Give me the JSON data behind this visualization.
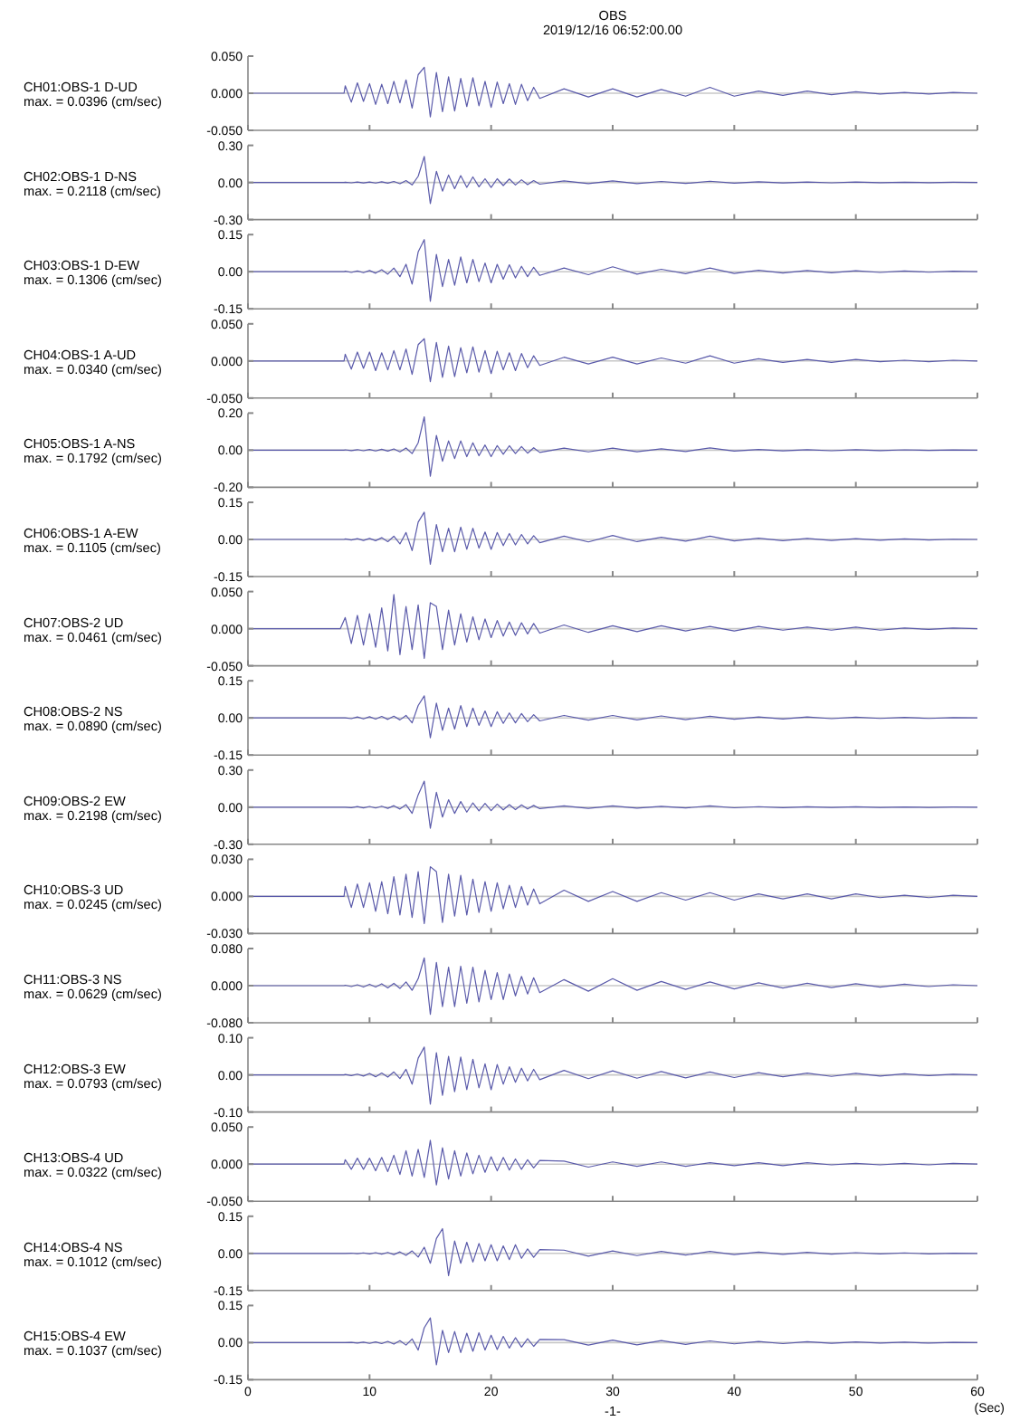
{
  "chart_data": [
    {
      "type": "line",
      "ylabel": "CH01:OBS-1 D-UD",
      "subtitle": "max. = 0.0396 (cm/sec)",
      "annotations": [
        "OBS",
        "2019/12/16 06:52:00.00"
      ],
      "xlim": [
        0,
        60
      ],
      "xticks": [
        0,
        10,
        20,
        30,
        40,
        50,
        60
      ],
      "ylim": [
        -0.05,
        0.05
      ],
      "yticks": [
        {
          "value": -0.05,
          "label": "-0.050"
        },
        {
          "value": 0,
          "label": "0.000"
        },
        {
          "value": 0.05,
          "label": "0.050"
        }
      ],
      "tick_labels": "y",
      "ref_lines": [
        {
          "axis": "y",
          "value": 0,
          "color": "#c8c8c8"
        }
      ],
      "x": [
        0,
        7.9,
        8,
        8.5,
        9,
        9.5,
        10,
        10.5,
        11,
        11.5,
        12,
        12.5,
        13,
        13.5,
        14,
        14.5,
        15,
        15.5,
        16,
        16.5,
        17,
        17.5,
        18,
        18.5,
        19,
        19.5,
        20,
        20.5,
        21,
        21.5,
        22,
        22.5,
        23,
        23.5,
        24,
        26,
        28,
        30,
        32,
        34,
        36,
        38,
        40,
        42,
        44,
        46,
        48,
        50,
        52,
        54,
        56,
        58,
        60
      ],
      "series": [
        {
          "color": "#5a5aaa",
          "values": [
            0,
            0,
            0.01,
            -0.012,
            0.014,
            -0.011,
            0.013,
            -0.015,
            0.012,
            -0.014,
            0.016,
            -0.013,
            0.018,
            -0.02,
            0.025,
            0.035,
            -0.032,
            0.028,
            -0.025,
            0.022,
            -0.024,
            0.02,
            -0.018,
            0.021,
            -0.017,
            0.016,
            -0.019,
            0.015,
            -0.014,
            0.013,
            -0.015,
            0.012,
            -0.01,
            0.008,
            -0.007,
            0.006,
            -0.005,
            0.006,
            -0.005,
            0.005,
            -0.004,
            0.008,
            -0.004,
            0.003,
            -0.003,
            0.003,
            -0.002,
            0.002,
            -0.001,
            0.001,
            -0.001,
            0.001,
            0
          ]
        }
      ]
    },
    {
      "type": "line",
      "ylabel": "CH02:OBS-1 D-NS",
      "subtitle": "max. = 0.2118 (cm/sec)",
      "xlim": [
        0,
        60
      ],
      "xticks": [
        0,
        10,
        20,
        30,
        40,
        50,
        60
      ],
      "ylim": [
        -0.3,
        0.3
      ],
      "yticks": [
        {
          "value": -0.3,
          "label": "-0.30"
        },
        {
          "value": 0,
          "label": "0.00"
        },
        {
          "value": 0.3,
          "label": "0.30"
        }
      ],
      "tick_labels": "y",
      "ref_lines": [
        {
          "axis": "y",
          "value": 0,
          "color": "#c8c8c8"
        }
      ],
      "x": [
        0,
        7.9,
        8,
        8.5,
        9,
        9.5,
        10,
        10.5,
        11,
        11.5,
        12,
        12.5,
        13,
        13.5,
        14,
        14.5,
        15,
        15.5,
        16,
        16.5,
        17,
        17.5,
        18,
        18.5,
        19,
        19.5,
        20,
        20.5,
        21,
        21.5,
        22,
        22.5,
        23,
        23.5,
        24,
        26,
        28,
        30,
        32,
        34,
        36,
        38,
        40,
        42,
        44,
        46,
        48,
        50,
        52,
        54,
        56,
        58,
        60
      ],
      "series": [
        {
          "color": "#5a5aaa",
          "values": [
            0,
            0,
            0.002,
            -0.003,
            0.003,
            -0.004,
            0.004,
            -0.005,
            0.005,
            -0.006,
            0.008,
            -0.01,
            0.015,
            -0.02,
            0.05,
            0.21,
            -0.17,
            0.09,
            -0.07,
            0.06,
            -0.05,
            0.055,
            -0.04,
            0.045,
            -0.035,
            0.03,
            -0.04,
            0.03,
            -0.025,
            0.028,
            -0.02,
            0.022,
            -0.018,
            0.015,
            -0.014,
            0.012,
            -0.01,
            0.012,
            -0.009,
            0.008,
            -0.008,
            0.01,
            -0.006,
            0.005,
            -0.004,
            0.004,
            -0.003,
            0.003,
            -0.002,
            0.002,
            -0.002,
            0.001,
            0
          ]
        }
      ]
    },
    {
      "type": "line",
      "ylabel": "CH03:OBS-1 D-EW",
      "subtitle": "max. = 0.1306 (cm/sec)",
      "xlim": [
        0,
        60
      ],
      "xticks": [
        0,
        10,
        20,
        30,
        40,
        50,
        60
      ],
      "ylim": [
        -0.15,
        0.15
      ],
      "yticks": [
        {
          "value": -0.15,
          "label": "-0.15"
        },
        {
          "value": 0,
          "label": "0.00"
        },
        {
          "value": 0.15,
          "label": "0.15"
        }
      ],
      "tick_labels": "y",
      "ref_lines": [
        {
          "axis": "y",
          "value": 0,
          "color": "#c8c8c8"
        }
      ],
      "x": [
        0,
        7.9,
        8,
        8.5,
        9,
        9.5,
        10,
        10.5,
        11,
        11.5,
        12,
        12.5,
        13,
        13.5,
        14,
        14.5,
        15,
        15.5,
        16,
        16.5,
        17,
        17.5,
        18,
        18.5,
        19,
        19.5,
        20,
        20.5,
        21,
        21.5,
        22,
        22.5,
        23,
        23.5,
        24,
        26,
        28,
        30,
        32,
        34,
        36,
        38,
        40,
        42,
        44,
        46,
        48,
        50,
        52,
        54,
        56,
        58,
        60
      ],
      "series": [
        {
          "color": "#5a5aaa",
          "values": [
            0,
            0,
            0.002,
            -0.003,
            0.003,
            -0.004,
            0.005,
            -0.006,
            0.008,
            -0.01,
            0.015,
            -0.02,
            0.03,
            -0.05,
            0.08,
            0.13,
            -0.12,
            0.07,
            -0.06,
            0.05,
            -0.055,
            0.06,
            -0.045,
            0.05,
            -0.04,
            0.035,
            -0.045,
            0.03,
            -0.03,
            0.028,
            -0.025,
            0.022,
            -0.02,
            0.018,
            -0.015,
            0.015,
            -0.012,
            0.02,
            -0.01,
            0.01,
            -0.008,
            0.015,
            -0.007,
            0.006,
            -0.005,
            0.005,
            -0.004,
            0.004,
            -0.003,
            0.003,
            -0.002,
            0.002,
            0
          ]
        }
      ]
    },
    {
      "type": "line",
      "ylabel": "CH04:OBS-1 A-UD",
      "subtitle": "max. = 0.0340 (cm/sec)",
      "xlim": [
        0,
        60
      ],
      "xticks": [
        0,
        10,
        20,
        30,
        40,
        50,
        60
      ],
      "ylim": [
        -0.05,
        0.05
      ],
      "yticks": [
        {
          "value": -0.05,
          "label": "-0.050"
        },
        {
          "value": 0,
          "label": "0.000"
        },
        {
          "value": 0.05,
          "label": "0.050"
        }
      ],
      "tick_labels": "y",
      "ref_lines": [
        {
          "axis": "y",
          "value": 0,
          "color": "#c8c8c8"
        }
      ],
      "x": [
        0,
        7.9,
        8,
        8.5,
        9,
        9.5,
        10,
        10.5,
        11,
        11.5,
        12,
        12.5,
        13,
        13.5,
        14,
        14.5,
        15,
        15.5,
        16,
        16.5,
        17,
        17.5,
        18,
        18.5,
        19,
        19.5,
        20,
        20.5,
        21,
        21.5,
        22,
        22.5,
        23,
        23.5,
        24,
        26,
        28,
        30,
        32,
        34,
        36,
        38,
        40,
        42,
        44,
        46,
        48,
        50,
        52,
        54,
        56,
        58,
        60
      ],
      "series": [
        {
          "color": "#5a5aaa",
          "values": [
            0,
            0,
            0.009,
            -0.011,
            0.012,
            -0.01,
            0.012,
            -0.013,
            0.011,
            -0.012,
            0.014,
            -0.012,
            0.016,
            -0.018,
            0.022,
            0.03,
            -0.028,
            0.025,
            -0.022,
            0.02,
            -0.021,
            0.018,
            -0.016,
            0.019,
            -0.015,
            0.014,
            -0.017,
            0.013,
            -0.012,
            0.011,
            -0.013,
            0.01,
            -0.009,
            0.007,
            -0.006,
            0.005,
            -0.004,
            0.005,
            -0.004,
            0.004,
            -0.003,
            0.007,
            -0.003,
            0.003,
            -0.002,
            0.002,
            -0.002,
            0.002,
            -0.001,
            0.001,
            -0.001,
            0.001,
            0
          ]
        }
      ]
    },
    {
      "type": "line",
      "ylabel": "CH05:OBS-1 A-NS",
      "subtitle": "max. = 0.1792 (cm/sec)",
      "xlim": [
        0,
        60
      ],
      "xticks": [
        0,
        10,
        20,
        30,
        40,
        50,
        60
      ],
      "ylim": [
        -0.2,
        0.2
      ],
      "yticks": [
        {
          "value": -0.2,
          "label": "-0.20"
        },
        {
          "value": 0,
          "label": "0.00"
        },
        {
          "value": 0.2,
          "label": "0.20"
        }
      ],
      "tick_labels": "y",
      "ref_lines": [
        {
          "axis": "y",
          "value": 0,
          "color": "#c8c8c8"
        }
      ],
      "x": [
        0,
        7.9,
        8,
        8.5,
        9,
        9.5,
        10,
        10.5,
        11,
        11.5,
        12,
        12.5,
        13,
        13.5,
        14,
        14.5,
        15,
        15.5,
        16,
        16.5,
        17,
        17.5,
        18,
        18.5,
        19,
        19.5,
        20,
        20.5,
        21,
        21.5,
        22,
        22.5,
        23,
        23.5,
        24,
        26,
        28,
        30,
        32,
        34,
        36,
        38,
        40,
        42,
        44,
        46,
        48,
        50,
        52,
        54,
        56,
        58,
        60
      ],
      "series": [
        {
          "color": "#5a5aaa",
          "values": [
            0,
            0,
            0.002,
            -0.002,
            0.003,
            -0.003,
            0.004,
            -0.004,
            0.005,
            -0.005,
            0.007,
            -0.009,
            0.012,
            -0.018,
            0.04,
            0.18,
            -0.14,
            0.08,
            -0.06,
            0.05,
            -0.045,
            0.05,
            -0.035,
            0.04,
            -0.03,
            0.028,
            -0.035,
            0.025,
            -0.022,
            0.024,
            -0.018,
            0.02,
            -0.016,
            0.013,
            -0.012,
            0.011,
            -0.009,
            0.011,
            -0.008,
            0.007,
            -0.007,
            0.012,
            -0.005,
            0.004,
            -0.004,
            0.003,
            -0.003,
            0.003,
            -0.002,
            0.002,
            -0.001,
            0.001,
            0
          ]
        }
      ]
    },
    {
      "type": "line",
      "ylabel": "CH06:OBS-1 A-EW",
      "subtitle": "max. = 0.1105 (cm/sec)",
      "xlim": [
        0,
        60
      ],
      "xticks": [
        0,
        10,
        20,
        30,
        40,
        50,
        60
      ],
      "ylim": [
        -0.15,
        0.15
      ],
      "yticks": [
        {
          "value": -0.15,
          "label": "-0.15"
        },
        {
          "value": 0,
          "label": "0.00"
        },
        {
          "value": 0.15,
          "label": "0.15"
        }
      ],
      "tick_labels": "y",
      "ref_lines": [
        {
          "axis": "y",
          "value": 0,
          "color": "#c8c8c8"
        }
      ],
      "x": [
        0,
        7.9,
        8,
        8.5,
        9,
        9.5,
        10,
        10.5,
        11,
        11.5,
        12,
        12.5,
        13,
        13.5,
        14,
        14.5,
        15,
        15.5,
        16,
        16.5,
        17,
        17.5,
        18,
        18.5,
        19,
        19.5,
        20,
        20.5,
        21,
        21.5,
        22,
        22.5,
        23,
        23.5,
        24,
        26,
        28,
        30,
        32,
        34,
        36,
        38,
        40,
        42,
        44,
        46,
        48,
        50,
        52,
        54,
        56,
        58,
        60
      ],
      "series": [
        {
          "color": "#5a5aaa",
          "values": [
            0,
            0,
            0.002,
            -0.002,
            0.003,
            -0.004,
            0.004,
            -0.005,
            0.007,
            -0.009,
            0.013,
            -0.018,
            0.028,
            -0.045,
            0.07,
            0.11,
            -0.1,
            0.06,
            -0.05,
            0.045,
            -0.05,
            0.05,
            -0.04,
            0.045,
            -0.035,
            0.03,
            -0.04,
            0.028,
            -0.025,
            0.024,
            -0.022,
            0.02,
            -0.018,
            0.015,
            -0.013,
            0.013,
            -0.01,
            0.016,
            -0.009,
            0.009,
            -0.007,
            0.013,
            -0.006,
            0.005,
            -0.005,
            0.004,
            -0.004,
            0.003,
            -0.003,
            0.002,
            -0.002,
            0.001,
            0
          ]
        }
      ]
    },
    {
      "type": "line",
      "ylabel": "CH07:OBS-2 UD",
      "subtitle": "max. = 0.0461 (cm/sec)",
      "xlim": [
        0,
        60
      ],
      "xticks": [
        0,
        10,
        20,
        30,
        40,
        50,
        60
      ],
      "ylim": [
        -0.05,
        0.05
      ],
      "yticks": [
        {
          "value": -0.05,
          "label": "-0.050"
        },
        {
          "value": 0,
          "label": "0.000"
        },
        {
          "value": 0.05,
          "label": "0.050"
        }
      ],
      "tick_labels": "y",
      "ref_lines": [
        {
          "axis": "y",
          "value": 0,
          "color": "#c8c8c8"
        }
      ],
      "x": [
        0,
        7.6,
        8,
        8.5,
        9,
        9.5,
        10,
        10.5,
        11,
        11.5,
        12,
        12.5,
        13,
        13.5,
        14,
        14.5,
        15,
        15.5,
        16,
        16.5,
        17,
        17.5,
        18,
        18.5,
        19,
        19.5,
        20,
        20.5,
        21,
        21.5,
        22,
        22.5,
        23,
        23.5,
        24,
        26,
        28,
        30,
        32,
        34,
        36,
        38,
        40,
        42,
        44,
        46,
        48,
        50,
        52,
        54,
        56,
        58,
        60
      ],
      "series": [
        {
          "color": "#5a5aaa",
          "values": [
            0,
            0,
            0.015,
            -0.02,
            0.018,
            -0.022,
            0.02,
            -0.025,
            0.028,
            -0.03,
            0.046,
            -0.035,
            0.03,
            -0.028,
            0.032,
            -0.04,
            0.035,
            0.03,
            -0.028,
            0.025,
            -0.022,
            0.02,
            -0.018,
            0.016,
            -0.015,
            0.013,
            -0.012,
            0.011,
            -0.01,
            0.009,
            -0.009,
            0.008,
            -0.007,
            0.007,
            -0.006,
            0.005,
            -0.005,
            0.004,
            -0.004,
            0.004,
            -0.003,
            0.003,
            -0.003,
            0.003,
            -0.002,
            0.002,
            -0.002,
            0.002,
            -0.002,
            0.001,
            -0.001,
            0.001,
            0
          ]
        }
      ]
    },
    {
      "type": "line",
      "ylabel": "CH08:OBS-2 NS",
      "subtitle": "max. = 0.0890 (cm/sec)",
      "xlim": [
        0,
        60
      ],
      "xticks": [
        0,
        10,
        20,
        30,
        40,
        50,
        60
      ],
      "ylim": [
        -0.15,
        0.15
      ],
      "yticks": [
        {
          "value": -0.15,
          "label": "-0.15"
        },
        {
          "value": 0,
          "label": "0.00"
        },
        {
          "value": 0.15,
          "label": "0.15"
        }
      ],
      "tick_labels": "y",
      "ref_lines": [
        {
          "axis": "y",
          "value": 0,
          "color": "#c8c8c8"
        }
      ],
      "x": [
        0,
        7.9,
        8,
        8.5,
        9,
        9.5,
        10,
        10.5,
        11,
        11.5,
        12,
        12.5,
        13,
        13.5,
        14,
        14.5,
        15,
        15.5,
        16,
        16.5,
        17,
        17.5,
        18,
        18.5,
        19,
        19.5,
        20,
        20.5,
        21,
        21.5,
        22,
        22.5,
        23,
        23.5,
        24,
        26,
        28,
        30,
        32,
        34,
        36,
        38,
        40,
        42,
        44,
        46,
        48,
        50,
        52,
        54,
        56,
        58,
        60
      ],
      "series": [
        {
          "color": "#5a5aaa",
          "values": [
            0,
            0,
            0,
            -0.003,
            0.004,
            -0.004,
            0.005,
            -0.005,
            0.006,
            -0.006,
            0.007,
            -0.008,
            0.01,
            -0.02,
            0.05,
            0.089,
            -0.08,
            0.06,
            -0.05,
            0.04,
            -0.045,
            0.05,
            -0.035,
            0.04,
            -0.03,
            0.028,
            -0.035,
            0.025,
            -0.022,
            0.02,
            -0.02,
            0.018,
            -0.015,
            0.013,
            -0.012,
            0.01,
            -0.009,
            0.01,
            -0.008,
            0.008,
            -0.007,
            0.007,
            -0.005,
            0.004,
            -0.004,
            0.004,
            -0.003,
            0.003,
            -0.002,
            0.002,
            -0.002,
            0.001,
            0
          ]
        }
      ]
    },
    {
      "type": "line",
      "ylabel": "CH09:OBS-2 EW",
      "subtitle": "max. = 0.2198 (cm/sec)",
      "xlim": [
        0,
        60
      ],
      "xticks": [
        0,
        10,
        20,
        30,
        40,
        50,
        60
      ],
      "ylim": [
        -0.3,
        0.3
      ],
      "yticks": [
        {
          "value": -0.3,
          "label": "-0.30"
        },
        {
          "value": 0,
          "label": "0.00"
        },
        {
          "value": 0.3,
          "label": "0.30"
        }
      ],
      "tick_labels": "y",
      "ref_lines": [
        {
          "axis": "y",
          "value": 0,
          "color": "#c8c8c8"
        }
      ],
      "x": [
        0,
        7.9,
        8,
        8.5,
        9,
        9.5,
        10,
        10.5,
        11,
        11.5,
        12,
        12.5,
        13,
        13.5,
        14,
        14.5,
        15,
        15.5,
        16,
        16.5,
        17,
        17.5,
        18,
        18.5,
        19,
        19.5,
        20,
        20.5,
        21,
        21.5,
        22,
        22.5,
        23,
        23.5,
        24,
        26,
        28,
        30,
        32,
        34,
        36,
        38,
        40,
        42,
        44,
        46,
        48,
        50,
        52,
        54,
        56,
        58,
        60
      ],
      "series": [
        {
          "color": "#5a5aaa",
          "values": [
            0,
            0,
            0,
            -0.004,
            0.005,
            -0.006,
            0.006,
            -0.007,
            0.008,
            -0.01,
            0.012,
            -0.015,
            0.02,
            -0.05,
            0.1,
            0.21,
            -0.17,
            0.12,
            -0.08,
            0.06,
            -0.05,
            0.045,
            -0.04,
            0.035,
            -0.03,
            0.03,
            -0.028,
            0.025,
            -0.022,
            0.02,
            -0.02,
            0.018,
            -0.015,
            0.014,
            -0.012,
            0.01,
            -0.009,
            0.01,
            -0.008,
            0.007,
            -0.006,
            0.01,
            -0.005,
            0.004,
            -0.004,
            0.003,
            -0.003,
            0.003,
            -0.002,
            0.002,
            -0.002,
            0.001,
            0
          ]
        }
      ]
    },
    {
      "type": "line",
      "ylabel": "CH10:OBS-3 UD",
      "subtitle": "max. = 0.0245 (cm/sec)",
      "xlim": [
        0,
        60
      ],
      "xticks": [
        0,
        10,
        20,
        30,
        40,
        50,
        60
      ],
      "ylim": [
        -0.03,
        0.03
      ],
      "yticks": [
        {
          "value": -0.03,
          "label": "-0.030"
        },
        {
          "value": 0,
          "label": "0.000"
        },
        {
          "value": 0.03,
          "label": "0.030"
        }
      ],
      "tick_labels": "y",
      "ref_lines": [
        {
          "axis": "y",
          "value": 0,
          "color": "#c8c8c8"
        }
      ],
      "x": [
        0,
        7.9,
        8,
        8.5,
        9,
        9.5,
        10,
        10.5,
        11,
        11.5,
        12,
        12.5,
        13,
        13.5,
        14,
        14.5,
        15,
        15.5,
        16,
        16.5,
        17,
        17.5,
        18,
        18.5,
        19,
        19.5,
        20,
        20.5,
        21,
        21.5,
        22,
        22.5,
        23,
        23.5,
        24,
        26,
        28,
        30,
        32,
        34,
        36,
        38,
        40,
        42,
        44,
        46,
        48,
        50,
        52,
        54,
        56,
        58,
        60
      ],
      "series": [
        {
          "color": "#5a5aaa",
          "values": [
            0,
            0,
            0.008,
            -0.009,
            0.01,
            -0.009,
            0.011,
            -0.012,
            0.012,
            -0.014,
            0.016,
            -0.015,
            0.018,
            -0.017,
            0.02,
            -0.022,
            0.024,
            0.02,
            -0.021,
            0.018,
            -0.016,
            0.017,
            -0.015,
            0.014,
            -0.013,
            0.012,
            -0.012,
            0.011,
            -0.01,
            0.009,
            -0.009,
            0.008,
            -0.007,
            0.006,
            -0.006,
            0.005,
            -0.004,
            0.004,
            -0.004,
            0.003,
            -0.003,
            0.003,
            -0.003,
            0.002,
            -0.002,
            0.002,
            -0.002,
            0.002,
            -0.001,
            0.001,
            -0.001,
            0.001,
            0
          ]
        }
      ]
    },
    {
      "type": "line",
      "ylabel": "CH11:OBS-3 NS",
      "subtitle": "max. = 0.0629 (cm/sec)",
      "xlim": [
        0,
        60
      ],
      "xticks": [
        0,
        10,
        20,
        30,
        40,
        50,
        60
      ],
      "ylim": [
        -0.08,
        0.08
      ],
      "yticks": [
        {
          "value": -0.08,
          "label": "-0.080"
        },
        {
          "value": 0,
          "label": "0.000"
        },
        {
          "value": 0.08,
          "label": "0.080"
        }
      ],
      "tick_labels": "y",
      "ref_lines": [
        {
          "axis": "y",
          "value": 0,
          "color": "#c8c8c8"
        }
      ],
      "x": [
        0,
        7.9,
        8,
        8.5,
        9,
        9.5,
        10,
        10.5,
        11,
        11.5,
        12,
        12.5,
        13,
        13.5,
        14,
        14.5,
        15,
        15.5,
        16,
        16.5,
        17,
        17.5,
        18,
        18.5,
        19,
        19.5,
        20,
        20.5,
        21,
        21.5,
        22,
        22.5,
        23,
        23.5,
        24,
        26,
        28,
        30,
        32,
        34,
        36,
        38,
        40,
        42,
        44,
        46,
        48,
        50,
        52,
        54,
        56,
        58,
        60
      ],
      "series": [
        {
          "color": "#5a5aaa",
          "values": [
            0,
            0,
            0.001,
            -0.002,
            0.002,
            -0.003,
            0.003,
            -0.003,
            0.004,
            -0.005,
            0.005,
            -0.006,
            0.008,
            -0.01,
            0.015,
            0.06,
            -0.062,
            0.05,
            -0.045,
            0.04,
            -0.045,
            0.042,
            -0.038,
            0.04,
            -0.035,
            0.033,
            -0.03,
            0.028,
            -0.03,
            0.025,
            -0.022,
            0.02,
            -0.018,
            0.017,
            -0.015,
            0.013,
            -0.012,
            0.015,
            -0.01,
            0.009,
            -0.008,
            0.008,
            -0.007,
            0.006,
            -0.005,
            0.005,
            -0.004,
            0.004,
            -0.003,
            0.003,
            -0.002,
            0.002,
            0
          ]
        }
      ]
    },
    {
      "type": "line",
      "ylabel": "CH12:OBS-3 EW",
      "subtitle": "max. = 0.0793 (cm/sec)",
      "xlim": [
        0,
        60
      ],
      "xticks": [
        0,
        10,
        20,
        30,
        40,
        50,
        60
      ],
      "ylim": [
        -0.1,
        0.1
      ],
      "yticks": [
        {
          "value": -0.1,
          "label": "-0.10"
        },
        {
          "value": 0,
          "label": "0.00"
        },
        {
          "value": 0.1,
          "label": "0.10"
        }
      ],
      "tick_labels": "y",
      "ref_lines": [
        {
          "axis": "y",
          "value": 0,
          "color": "#c8c8c8"
        }
      ],
      "x": [
        0,
        7.9,
        8,
        8.5,
        9,
        9.5,
        10,
        10.5,
        11,
        11.5,
        12,
        12.5,
        13,
        13.5,
        14,
        14.5,
        15,
        15.5,
        16,
        16.5,
        17,
        17.5,
        18,
        18.5,
        19,
        19.5,
        20,
        20.5,
        21,
        21.5,
        22,
        22.5,
        23,
        23.5,
        24,
        26,
        28,
        30,
        32,
        34,
        36,
        38,
        40,
        42,
        44,
        46,
        48,
        50,
        52,
        54,
        56,
        58,
        60
      ],
      "series": [
        {
          "color": "#5a5aaa",
          "values": [
            0,
            0,
            0.001,
            -0.002,
            0.002,
            -0.003,
            0.004,
            -0.005,
            0.005,
            -0.006,
            0.008,
            -0.01,
            0.015,
            -0.025,
            0.045,
            0.075,
            -0.079,
            0.06,
            -0.055,
            0.05,
            -0.045,
            0.048,
            -0.04,
            0.042,
            -0.035,
            0.03,
            -0.04,
            0.028,
            -0.025,
            0.022,
            -0.02,
            0.018,
            -0.016,
            0.015,
            -0.013,
            0.012,
            -0.01,
            0.011,
            -0.009,
            0.009,
            -0.008,
            0.008,
            -0.007,
            0.006,
            -0.005,
            0.005,
            -0.004,
            0.004,
            -0.003,
            0.003,
            -0.002,
            0.002,
            0
          ]
        }
      ]
    },
    {
      "type": "line",
      "ylabel": "CH13:OBS-4 UD",
      "subtitle": "max. = 0.0322 (cm/sec)",
      "xlim": [
        0,
        60
      ],
      "xticks": [
        0,
        10,
        20,
        30,
        40,
        50,
        60
      ],
      "ylim": [
        -0.05,
        0.05
      ],
      "yticks": [
        {
          "value": -0.05,
          "label": "-0.050"
        },
        {
          "value": 0,
          "label": "0.000"
        },
        {
          "value": 0.05,
          "label": "0.050"
        }
      ],
      "tick_labels": "y",
      "ref_lines": [
        {
          "axis": "y",
          "value": 0,
          "color": "#c8c8c8"
        }
      ],
      "x": [
        0,
        7.9,
        8,
        8.5,
        9,
        9.5,
        10,
        10.5,
        11,
        11.5,
        12,
        12.5,
        13,
        13.5,
        14,
        14.5,
        15,
        15.5,
        16,
        16.5,
        17,
        17.5,
        18,
        18.5,
        19,
        19.5,
        20,
        20.5,
        21,
        21.5,
        22,
        22.5,
        23,
        23.5,
        24,
        26,
        28,
        30,
        32,
        34,
        36,
        38,
        40,
        42,
        44,
        46,
        48,
        50,
        52,
        54,
        56,
        58,
        60
      ],
      "series": [
        {
          "color": "#5a5aaa",
          "values": [
            0,
            0,
            0.006,
            -0.007,
            0.008,
            -0.007,
            0.008,
            -0.009,
            0.009,
            -0.01,
            0.012,
            -0.014,
            0.018,
            -0.016,
            0.02,
            -0.018,
            0.032,
            -0.028,
            0.022,
            -0.02,
            0.018,
            -0.016,
            0.015,
            -0.013,
            0.012,
            -0.011,
            0.01,
            -0.009,
            0.009,
            -0.008,
            0.007,
            -0.007,
            0.006,
            -0.005,
            0.005,
            0.004,
            -0.004,
            0.003,
            -0.003,
            0.003,
            -0.003,
            0.002,
            -0.002,
            0.002,
            -0.002,
            0.002,
            -0.001,
            0.001,
            -0.001,
            0.001,
            -0.001,
            0.001,
            0
          ]
        }
      ]
    },
    {
      "type": "line",
      "ylabel": "CH14:OBS-4 NS",
      "subtitle": "max. = 0.1012 (cm/sec)",
      "xlim": [
        0,
        60
      ],
      "xticks": [
        0,
        10,
        20,
        30,
        40,
        50,
        60
      ],
      "ylim": [
        -0.15,
        0.15
      ],
      "yticks": [
        {
          "value": -0.15,
          "label": "-0.15"
        },
        {
          "value": 0,
          "label": "0.00"
        },
        {
          "value": 0.15,
          "label": "0.15"
        }
      ],
      "tick_labels": "y",
      "ref_lines": [
        {
          "axis": "y",
          "value": 0,
          "color": "#c8c8c8"
        }
      ],
      "x": [
        0,
        7.9,
        8,
        8.5,
        9,
        9.5,
        10,
        10.5,
        11,
        11.5,
        12,
        12.5,
        13,
        13.5,
        14,
        14.5,
        15,
        15.5,
        16,
        16.5,
        17,
        17.5,
        18,
        18.5,
        19,
        19.5,
        20,
        20.5,
        21,
        21.5,
        22,
        22.5,
        23,
        23.5,
        24,
        26,
        28,
        30,
        32,
        34,
        36,
        38,
        40,
        42,
        44,
        46,
        48,
        50,
        52,
        54,
        56,
        58,
        60
      ],
      "series": [
        {
          "color": "#5a5aaa",
          "values": [
            0,
            0,
            0,
            0.001,
            -0.001,
            0.002,
            -0.002,
            0.003,
            -0.003,
            0.004,
            -0.005,
            0.006,
            -0.008,
            0.01,
            -0.015,
            0.025,
            -0.04,
            0.06,
            0.1,
            -0.09,
            0.05,
            -0.04,
            0.045,
            -0.035,
            0.04,
            -0.03,
            0.035,
            -0.03,
            0.03,
            -0.025,
            0.035,
            -0.02,
            0.018,
            -0.016,
            0.015,
            0.013,
            -0.011,
            0.01,
            -0.009,
            0.008,
            -0.007,
            0.008,
            -0.005,
            0.005,
            -0.004,
            0.004,
            -0.003,
            0.003,
            -0.002,
            0.002,
            -0.002,
            0.001,
            0
          ]
        }
      ]
    },
    {
      "type": "line",
      "ylabel": "CH15:OBS-4 EW",
      "subtitle": "max. = 0.1037 (cm/sec)",
      "xlabel": "(Sec)",
      "annotations": [
        "-1-"
      ],
      "xlim": [
        0,
        60
      ],
      "xticks": [
        0,
        10,
        20,
        30,
        40,
        50,
        60
      ],
      "ylim": [
        -0.15,
        0.15
      ],
      "yticks": [
        {
          "value": -0.15,
          "label": "-0.15"
        },
        {
          "value": 0,
          "label": "0.00"
        },
        {
          "value": 0.15,
          "label": "0.15"
        }
      ],
      "ref_lines": [
        {
          "axis": "y",
          "value": 0,
          "color": "#c8c8c8"
        }
      ],
      "x": [
        0,
        7.9,
        8,
        8.5,
        9,
        9.5,
        10,
        10.5,
        11,
        11.5,
        12,
        12.5,
        13,
        13.5,
        14,
        14.5,
        15,
        15.5,
        16,
        16.5,
        17,
        17.5,
        18,
        18.5,
        19,
        19.5,
        20,
        20.5,
        21,
        21.5,
        22,
        22.5,
        23,
        23.5,
        24,
        26,
        28,
        30,
        32,
        34,
        36,
        38,
        40,
        42,
        44,
        46,
        48,
        50,
        52,
        54,
        56,
        58,
        60
      ],
      "series": [
        {
          "color": "#5a5aaa",
          "values": [
            0,
            0,
            0,
            0.001,
            -0.002,
            0.002,
            -0.003,
            0.003,
            -0.004,
            0.005,
            -0.006,
            0.008,
            -0.01,
            0.015,
            -0.03,
            0.06,
            0.1,
            -0.09,
            0.05,
            -0.04,
            0.045,
            -0.04,
            0.038,
            -0.035,
            0.04,
            -0.03,
            0.03,
            -0.028,
            0.025,
            -0.022,
            0.02,
            -0.018,
            0.016,
            -0.015,
            0.013,
            0.012,
            -0.01,
            0.01,
            -0.009,
            0.008,
            -0.007,
            0.007,
            -0.005,
            0.005,
            -0.004,
            0.004,
            -0.003,
            0.003,
            -0.002,
            0.002,
            -0.002,
            0.001,
            0
          ]
        }
      ]
    }
  ]
}
